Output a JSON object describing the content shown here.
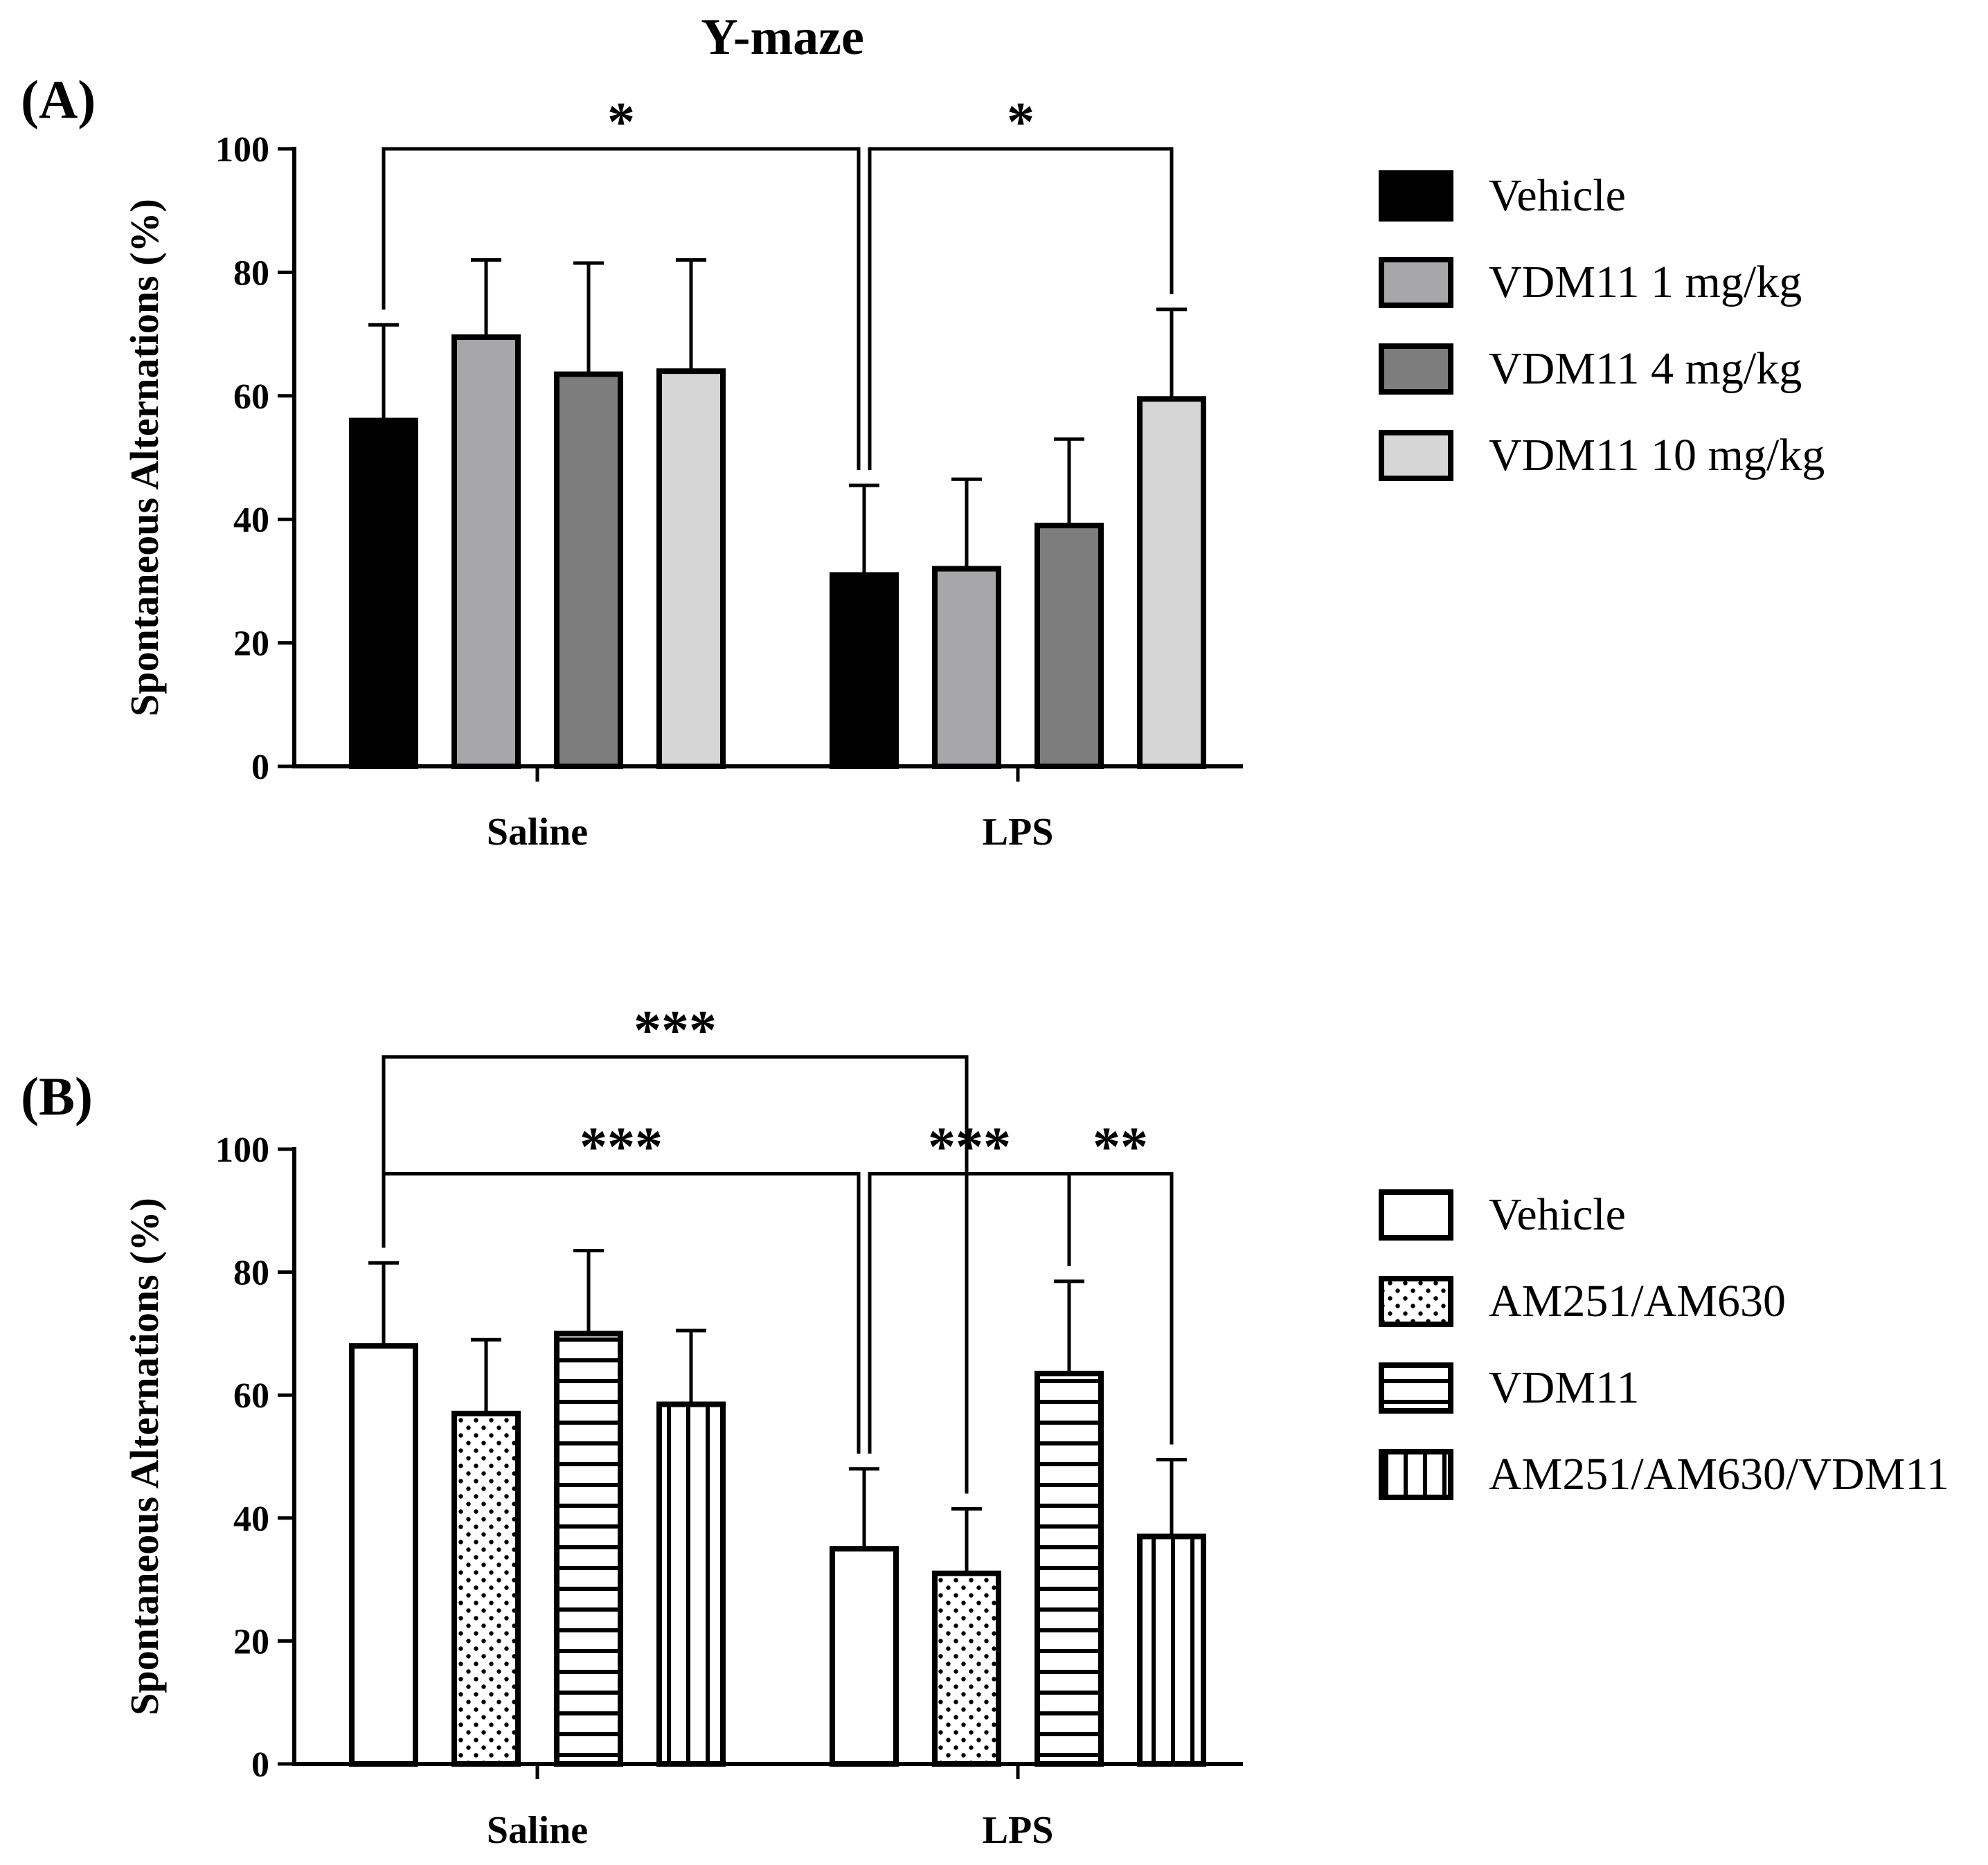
{
  "figure": {
    "title": "Y-maze"
  },
  "chart_data": [
    {
      "panel_label": "(A)",
      "type": "bar",
      "ylabel": "Spontaneous Alternations (%)",
      "xlabel": "",
      "ylim": [
        0,
        100
      ],
      "yticks": [
        0,
        20,
        40,
        60,
        80,
        100
      ],
      "categories": [
        "Saline",
        "LPS"
      ],
      "series": [
        {
          "name": "Vehicle",
          "fill": "#000000",
          "pattern": "solid",
          "values": [
            56,
            31
          ],
          "errors": [
            15.5,
            14.5
          ]
        },
        {
          "name": "VDM11 1 mg/kg",
          "fill": "#a7a7aa",
          "pattern": "solid",
          "values": [
            69.5,
            32
          ],
          "errors": [
            12.5,
            14.5
          ]
        },
        {
          "name": "VDM11 4 mg/kg",
          "fill": "#7d7d7d",
          "pattern": "solid",
          "values": [
            63.5,
            39
          ],
          "errors": [
            18,
            14
          ]
        },
        {
          "name": "VDM11 10 mg/kg",
          "fill": "#d6d6d6",
          "pattern": "solid",
          "values": [
            64,
            59.5
          ],
          "errors": [
            18,
            14.5
          ]
        }
      ],
      "significance": [
        {
          "label": "*",
          "from": [
            0,
            0
          ],
          "to": [
            1,
            0
          ],
          "level": 100
        },
        {
          "label": "*",
          "from": [
            1,
            0
          ],
          "to": [
            1,
            3
          ],
          "level": 100
        }
      ],
      "legend_position": "right"
    },
    {
      "panel_label": "(B)",
      "type": "bar",
      "ylabel": "Spontaneous Alternations (%)",
      "xlabel": "",
      "ylim": [
        0,
        100
      ],
      "yticks": [
        0,
        20,
        40,
        60,
        80,
        100
      ],
      "categories": [
        "Saline",
        "LPS"
      ],
      "series": [
        {
          "name": "Vehicle",
          "fill": "#ffffff",
          "pattern": "empty",
          "values": [
            68,
            35
          ],
          "errors": [
            13.5,
            13
          ]
        },
        {
          "name": "AM251/AM630",
          "fill": "#ffffff",
          "pattern": "dots",
          "values": [
            57,
            31
          ],
          "errors": [
            12,
            10.5
          ]
        },
        {
          "name": "VDM11",
          "fill": "#ffffff",
          "pattern": "horizontal",
          "values": [
            70,
            63.5
          ],
          "errors": [
            13.5,
            15
          ]
        },
        {
          "name": "AM251/AM630/VDM11",
          "fill": "#ffffff",
          "pattern": "vertical",
          "values": [
            58.5,
            37
          ],
          "errors": [
            12,
            12.5
          ]
        }
      ],
      "significance": [
        {
          "label": "***",
          "from": [
            0,
            0
          ],
          "to": [
            1,
            1
          ],
          "level": 115
        },
        {
          "label": "***",
          "from": [
            0,
            0
          ],
          "to": [
            1,
            0
          ],
          "level": 96
        },
        {
          "label": "***",
          "from": [
            1,
            0
          ],
          "to": [
            1,
            2
          ],
          "level": 96
        },
        {
          "label": "**",
          "from": [
            1,
            2
          ],
          "to": [
            1,
            3
          ],
          "level": 96
        }
      ],
      "legend_position": "right"
    }
  ]
}
